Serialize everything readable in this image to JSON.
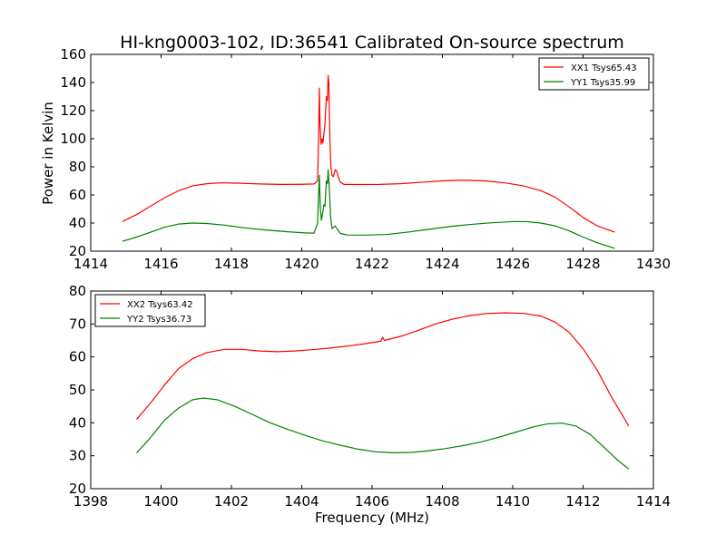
{
  "chart_data": [
    {
      "type": "line",
      "title": "HI-kng0003-102, ID:36541 Calibrated On-source spectrum",
      "ylabel": "Power in Kelvin",
      "xlabel": "",
      "xlim": [
        1414,
        1430
      ],
      "ylim": [
        20,
        160
      ],
      "xticks": [
        1414,
        1416,
        1418,
        1420,
        1422,
        1424,
        1426,
        1428,
        1430
      ],
      "yticks": [
        20,
        40,
        60,
        80,
        100,
        120,
        140,
        160
      ],
      "legend_position": "upper right",
      "series": [
        {
          "name": "XX1 Tsys65.43",
          "color": "#ff0000",
          "points": [
            [
              1414.9,
              41
            ],
            [
              1415.3,
              46
            ],
            [
              1415.7,
              52
            ],
            [
              1416.1,
              58
            ],
            [
              1416.5,
              63
            ],
            [
              1416.9,
              66.5
            ],
            [
              1417.3,
              68
            ],
            [
              1417.7,
              68.6
            ],
            [
              1418.2,
              68.4
            ],
            [
              1418.8,
              67.8
            ],
            [
              1419.4,
              67.5
            ],
            [
              1420.0,
              67.6
            ],
            [
              1420.35,
              67.8
            ],
            [
              1420.45,
              70
            ],
            [
              1420.48,
              100
            ],
            [
              1420.5,
              136
            ],
            [
              1420.52,
              110
            ],
            [
              1420.55,
              96
            ],
            [
              1420.58,
              100
            ],
            [
              1420.6,
              97
            ],
            [
              1420.63,
              103
            ],
            [
              1420.66,
              110
            ],
            [
              1420.7,
              130
            ],
            [
              1420.73,
              127
            ],
            [
              1420.75,
              145
            ],
            [
              1420.77,
              140
            ],
            [
              1420.8,
              100
            ],
            [
              1420.83,
              80
            ],
            [
              1420.86,
              74
            ],
            [
              1420.9,
              73
            ],
            [
              1420.95,
              78
            ],
            [
              1421.0,
              76.5
            ],
            [
              1421.05,
              72
            ],
            [
              1421.1,
              69
            ],
            [
              1421.2,
              67.5
            ],
            [
              1421.6,
              67.4
            ],
            [
              1422.2,
              67.5
            ],
            [
              1422.8,
              68
            ],
            [
              1423.4,
              69
            ],
            [
              1424.0,
              70
            ],
            [
              1424.6,
              70.5
            ],
            [
              1425.2,
              70
            ],
            [
              1425.8,
              68.5
            ],
            [
              1426.3,
              66.5
            ],
            [
              1426.8,
              63
            ],
            [
              1427.2,
              58.5
            ],
            [
              1427.6,
              51.5
            ],
            [
              1428.0,
              44
            ],
            [
              1428.4,
              38
            ],
            [
              1428.9,
              33.5
            ]
          ]
        },
        {
          "name": "YY1 Tsys35.99",
          "color": "#008000",
          "points": [
            [
              1414.9,
              27
            ],
            [
              1415.3,
              30
            ],
            [
              1415.7,
              33.5
            ],
            [
              1416.1,
              37
            ],
            [
              1416.5,
              39.3
            ],
            [
              1416.9,
              40
            ],
            [
              1417.3,
              39.7
            ],
            [
              1417.8,
              38.5
            ],
            [
              1418.4,
              36.5
            ],
            [
              1419.0,
              35
            ],
            [
              1419.6,
              33.8
            ],
            [
              1420.1,
              33
            ],
            [
              1420.35,
              32.8
            ],
            [
              1420.45,
              40
            ],
            [
              1420.5,
              74
            ],
            [
              1420.53,
              50
            ],
            [
              1420.56,
              42
            ],
            [
              1420.6,
              48
            ],
            [
              1420.63,
              53
            ],
            [
              1420.66,
              52
            ],
            [
              1420.7,
              70
            ],
            [
              1420.73,
              68
            ],
            [
              1420.75,
              78
            ],
            [
              1420.78,
              67
            ],
            [
              1420.82,
              45
            ],
            [
              1420.86,
              36
            ],
            [
              1420.95,
              38
            ],
            [
              1421.0,
              36
            ],
            [
              1421.1,
              32.5
            ],
            [
              1421.3,
              31.5
            ],
            [
              1421.8,
              31.4
            ],
            [
              1422.4,
              31.8
            ],
            [
              1423.0,
              33.5
            ],
            [
              1423.6,
              35.5
            ],
            [
              1424.2,
              37.5
            ],
            [
              1424.8,
              39
            ],
            [
              1425.4,
              40.2
            ],
            [
              1426.0,
              41
            ],
            [
              1426.4,
              41
            ],
            [
              1426.8,
              40
            ],
            [
              1427.2,
              38
            ],
            [
              1427.6,
              34.5
            ],
            [
              1428.0,
              30
            ],
            [
              1428.4,
              26
            ],
            [
              1428.9,
              22
            ]
          ]
        }
      ]
    },
    {
      "type": "line",
      "title": "",
      "ylabel": "",
      "xlabel": "Frequency (MHz)",
      "xlim": [
        1398,
        1414
      ],
      "ylim": [
        20,
        80
      ],
      "xticks": [
        1398,
        1400,
        1402,
        1404,
        1406,
        1408,
        1410,
        1412,
        1414
      ],
      "yticks": [
        20,
        30,
        40,
        50,
        60,
        70,
        80
      ],
      "legend_position": "upper left",
      "series": [
        {
          "name": "XX2 Tsys63.42",
          "color": "#ff0000",
          "points": [
            [
              1399.3,
              41
            ],
            [
              1399.7,
              46
            ],
            [
              1400.1,
              51.5
            ],
            [
              1400.5,
              56.5
            ],
            [
              1400.9,
              59.5
            ],
            [
              1401.3,
              61.3
            ],
            [
              1401.8,
              62.3
            ],
            [
              1402.3,
              62.3
            ],
            [
              1402.8,
              61.8
            ],
            [
              1403.3,
              61.6
            ],
            [
              1403.8,
              61.8
            ],
            [
              1404.3,
              62.2
            ],
            [
              1404.8,
              62.7
            ],
            [
              1405.3,
              63.3
            ],
            [
              1405.8,
              64
            ],
            [
              1406.25,
              64.8
            ],
            [
              1406.3,
              66
            ],
            [
              1406.35,
              65
            ],
            [
              1406.8,
              66.2
            ],
            [
              1407.3,
              68
            ],
            [
              1407.8,
              70
            ],
            [
              1408.3,
              71.5
            ],
            [
              1408.8,
              72.6
            ],
            [
              1409.3,
              73.2
            ],
            [
              1409.8,
              73.4
            ],
            [
              1410.3,
              73.2
            ],
            [
              1410.8,
              72.4
            ],
            [
              1411.2,
              70.6
            ],
            [
              1411.6,
              67.5
            ],
            [
              1412.0,
              62.5
            ],
            [
              1412.4,
              56
            ],
            [
              1412.8,
              48
            ],
            [
              1413.3,
              39
            ]
          ]
        },
        {
          "name": "YY2 Tsys36.73",
          "color": "#008000",
          "points": [
            [
              1399.3,
              30.8
            ],
            [
              1399.7,
              35.5
            ],
            [
              1400.1,
              40.8
            ],
            [
              1400.5,
              44.5
            ],
            [
              1400.9,
              47
            ],
            [
              1401.2,
              47.5
            ],
            [
              1401.6,
              47
            ],
            [
              1402.1,
              45
            ],
            [
              1402.6,
              42.5
            ],
            [
              1403.1,
              40
            ],
            [
              1403.6,
              38
            ],
            [
              1404.1,
              36.2
            ],
            [
              1404.6,
              34.5
            ],
            [
              1405.1,
              33.2
            ],
            [
              1405.6,
              32
            ],
            [
              1406.1,
              31.2
            ],
            [
              1406.6,
              30.9
            ],
            [
              1407.1,
              31
            ],
            [
              1407.6,
              31.5
            ],
            [
              1408.1,
              32.2
            ],
            [
              1408.6,
              33.1
            ],
            [
              1409.1,
              34.2
            ],
            [
              1409.6,
              35.6
            ],
            [
              1410.1,
              37.2
            ],
            [
              1410.6,
              38.8
            ],
            [
              1411.0,
              39.7
            ],
            [
              1411.4,
              39.9
            ],
            [
              1411.8,
              39
            ],
            [
              1412.2,
              36.5
            ],
            [
              1412.6,
              32.5
            ],
            [
              1413.0,
              28.5
            ],
            [
              1413.3,
              26
            ]
          ]
        }
      ]
    }
  ]
}
